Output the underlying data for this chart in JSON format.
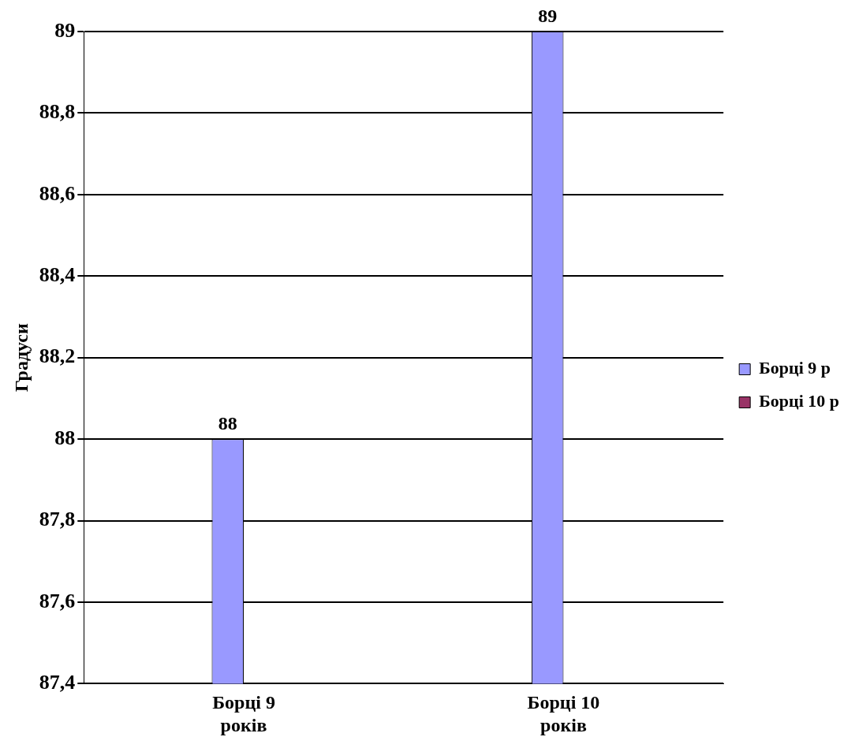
{
  "chart_data": {
    "type": "bar",
    "ylabel": "Градуси",
    "categories": [
      "Борці 9 років",
      "Борці 10 років"
    ],
    "series": [
      {
        "name": "Борці 9 р",
        "color": "#9999ff",
        "values": [
          88,
          89
        ]
      },
      {
        "name": "Борці 10 р",
        "color": "#993366",
        "values": [
          null,
          null
        ]
      }
    ],
    "ylim": [
      87.4,
      89
    ],
    "yticks": [
      {
        "value": 87.4,
        "label": "87,4"
      },
      {
        "value": 87.6,
        "label": "87,6"
      },
      {
        "value": 87.8,
        "label": "87,8"
      },
      {
        "value": 88,
        "label": "88"
      },
      {
        "value": 88.2,
        "label": "88,2"
      },
      {
        "value": 88.4,
        "label": "88,4"
      },
      {
        "value": 88.6,
        "label": "88,6"
      },
      {
        "value": 88.8,
        "label": "88,8"
      },
      {
        "value": 89,
        "label": "89"
      }
    ],
    "grid": "y",
    "legend": "right",
    "data_labels": true
  }
}
